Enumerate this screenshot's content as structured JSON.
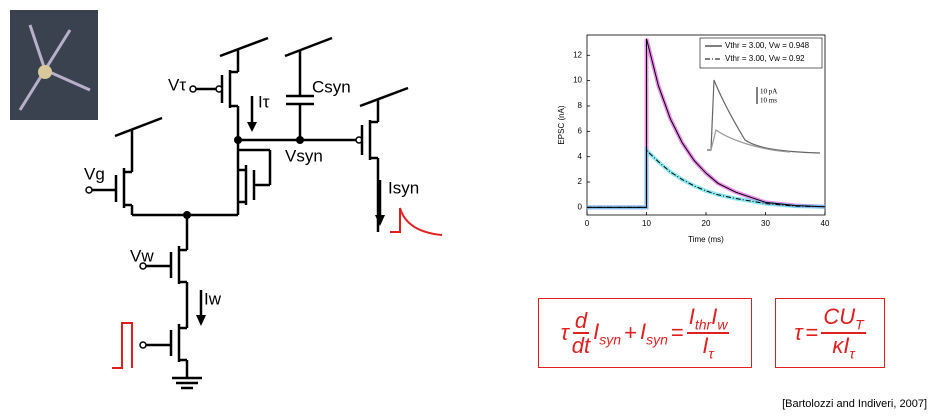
{
  "circuit": {
    "labels": {
      "vtau": "Vτ",
      "itau": "Iτ",
      "csyn": "Csyn",
      "vsyn": "Vsyn",
      "isyn": "Isyn",
      "vg": "Vg",
      "vw": "Vw",
      "iw": "Iw"
    }
  },
  "chart_data": {
    "type": "line",
    "x_label": "Time (ms)",
    "y_label": "EPSC (nA)",
    "x": [
      0,
      5,
      10,
      10,
      12,
      14,
      16,
      18,
      20,
      22,
      25,
      30,
      35,
      40
    ],
    "series": [
      {
        "name": "Vthr = 3.00, Vw = 0.948",
        "color": "#000000",
        "band_color": "#e040e0",
        "dash": "solid",
        "values": [
          0,
          0,
          0,
          13.3,
          9.6,
          7.0,
          5.1,
          3.7,
          2.7,
          1.9,
          1.2,
          0.4,
          0.15,
          0.05
        ]
      },
      {
        "name": "Vthr = 3.00, Vw = 0.92",
        "color": "#000000",
        "band_color": "#40d8e8",
        "dash": "dashdot",
        "values": [
          0,
          0,
          0,
          4.5,
          3.6,
          2.8,
          2.2,
          1.7,
          1.3,
          1.0,
          0.7,
          0.3,
          0.1,
          0.05
        ]
      }
    ],
    "xlim": [
      0,
      40
    ],
    "xticks": [
      0,
      10,
      20,
      30,
      40
    ],
    "ylim": [
      -0.6,
      13.6
    ],
    "yticks": [
      0,
      2,
      4,
      6,
      8,
      10,
      12
    ],
    "legend": "upper right",
    "inset": {
      "scale_y": "10 pA",
      "scale_x": "10 ms"
    }
  },
  "equation_1": {
    "prefix": "τ",
    "d_num": "d",
    "d_den": "dt",
    "term1": "I",
    "term1_sub": "syn",
    "plus": "+",
    "term2": "I",
    "term2_sub": "syn",
    "equals": "=",
    "num1": "I",
    "num1_sub": "thr",
    "num2": "I",
    "num2_sub": "w",
    "den": "I",
    "den_sub": "τ"
  },
  "equation_2": {
    "lhs": "τ",
    "equals": "=",
    "num": "CU",
    "num_sub": "T",
    "den": "κI",
    "den_sub": "τ"
  },
  "citation": "[Bartolozzi and Indiveri, 2007]"
}
